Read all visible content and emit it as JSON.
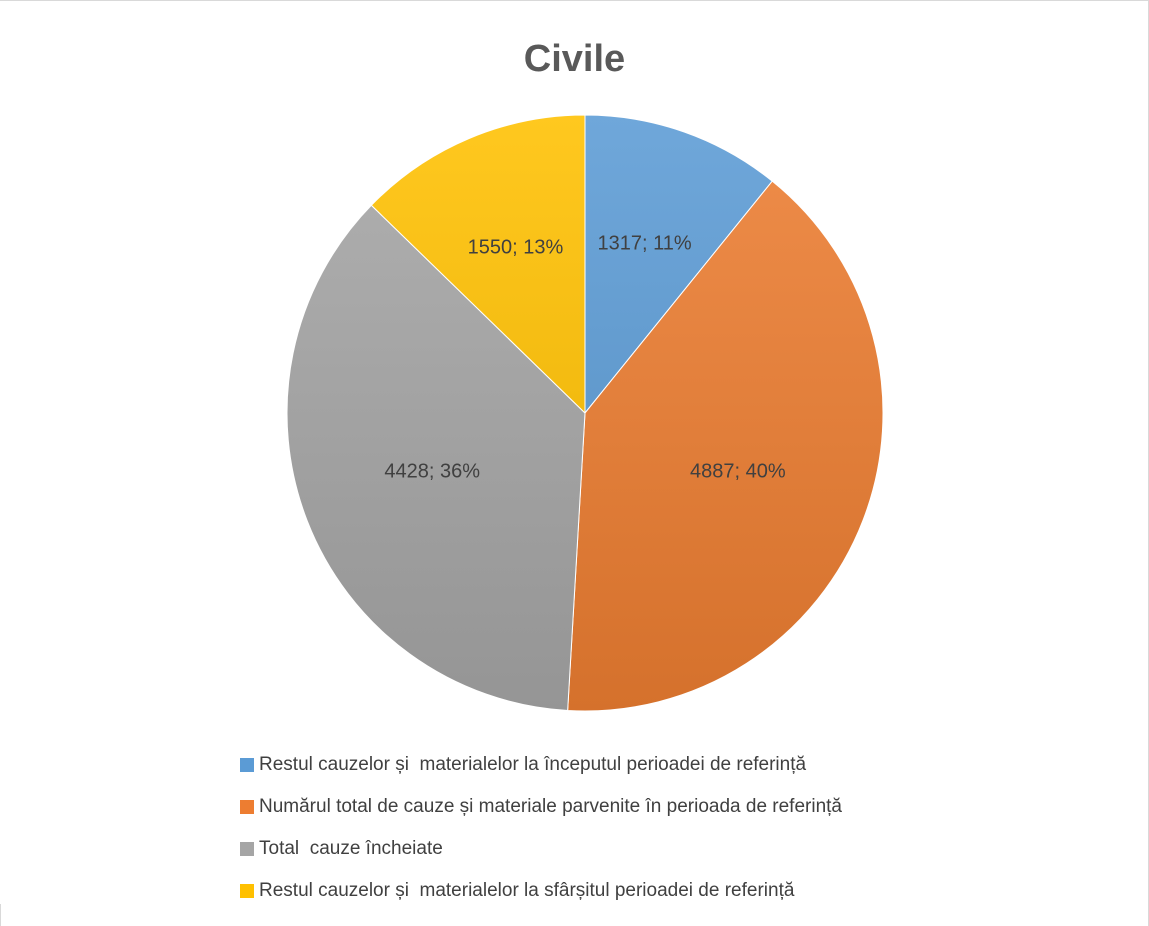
{
  "chart_data": {
    "type": "pie",
    "title": "Civile",
    "legend_position": "bottom",
    "slices": [
      {
        "name": "Restul cauzelor și  materialelor la începutul perioadei de referință",
        "value": 1317,
        "percent": 11,
        "label": "1317; 11%",
        "color": "#5B9BD5"
      },
      {
        "name": "Numărul total de cauze și materiale parvenite în perioada de referință",
        "value": 4887,
        "percent": 40,
        "label": "4887; 40%",
        "color": "#ED7D31"
      },
      {
        "name": "Total  cauze încheiate",
        "value": 4428,
        "percent": 36,
        "label": "4428; 36%",
        "color": "#A5A5A5"
      },
      {
        "name": "Restul cauzelor și  materialelor la sfârșitul perioadei de referință",
        "value": 1550,
        "percent": 13,
        "label": "1550; 13%",
        "color": "#FFC000"
      }
    ]
  }
}
